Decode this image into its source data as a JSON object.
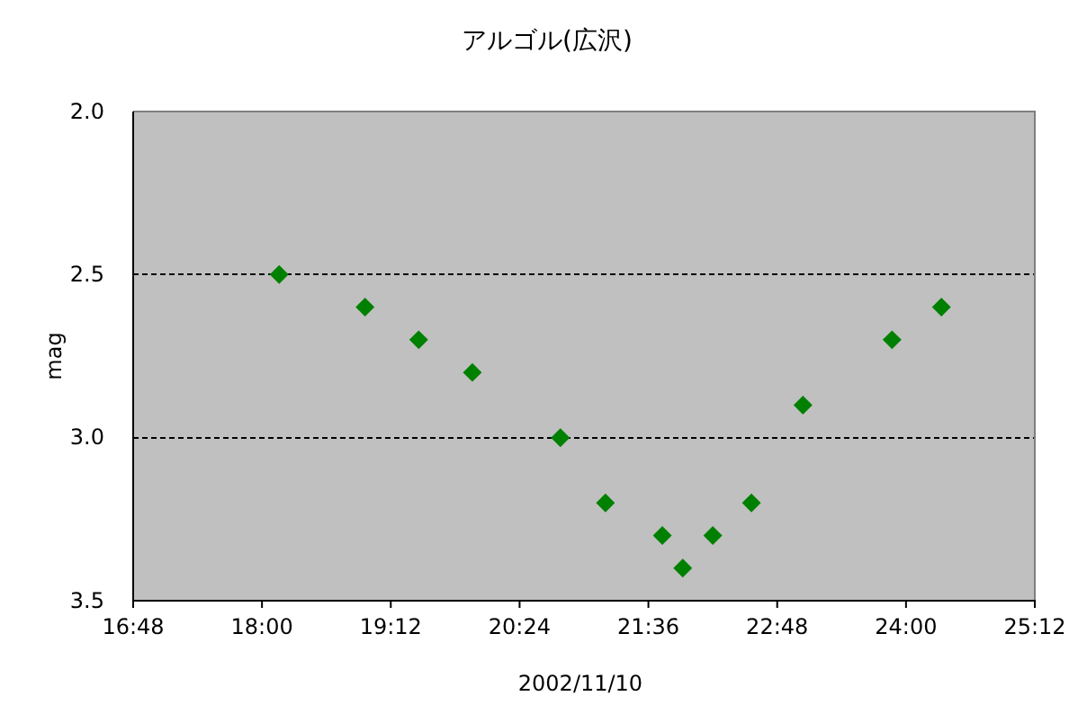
{
  "chart_data": {
    "type": "scatter",
    "title": "アルゴル(広沢)",
    "xlabel": "2002/11/10",
    "ylabel": "mag",
    "x": [
      18.16,
      18.96,
      19.46,
      19.96,
      20.78,
      21.2,
      21.73,
      21.92,
      22.2,
      22.56,
      23.04,
      23.87,
      24.33
    ],
    "series": [
      {
        "color": "#008000",
        "values": [
          2.5,
          2.6,
          2.7,
          2.8,
          3.0,
          3.2,
          3.3,
          3.4,
          3.3,
          3.2,
          2.9,
          2.7,
          2.6
        ]
      }
    ],
    "xlim": [
      16.8,
      25.2
    ],
    "xticks": [
      {
        "value": 16.8,
        "label": "16:48"
      },
      {
        "value": 18,
        "label": "18:00"
      },
      {
        "value": 19.2,
        "label": "19:12"
      },
      {
        "value": 20.4,
        "label": "20:24"
      },
      {
        "value": 21.6,
        "label": "21:36"
      },
      {
        "value": 22.8,
        "label": "22:48"
      },
      {
        "value": 24,
        "label": "24:00"
      },
      {
        "value": 25.2,
        "label": "25:12"
      }
    ],
    "ylim": [
      3.5,
      2.0
    ],
    "yticks": [
      {
        "value": 2,
        "label": "2.0"
      },
      2.5,
      {
        "value": 3,
        "label": "3.0"
      },
      3.5
    ],
    "grid": "y",
    "marker": "diamond"
  }
}
